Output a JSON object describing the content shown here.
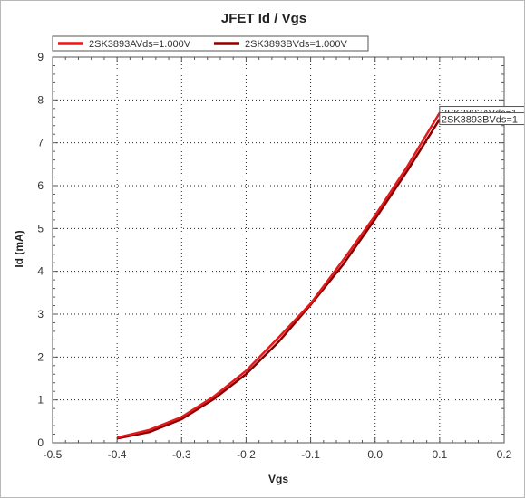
{
  "chart_data": {
    "type": "line",
    "title": "JFET Id / Vgs",
    "xlabel": "Vgs",
    "ylabel": "Id (mA)",
    "xlim": [
      -0.5,
      0.2
    ],
    "ylim": [
      0,
      9
    ],
    "x_ticks": [
      "-0.5",
      "-0.4",
      "-0.3",
      "-0.2",
      "-0.1",
      "0.0",
      "0.1",
      "0.2"
    ],
    "y_ticks": [
      "0",
      "1",
      "2",
      "3",
      "4",
      "5",
      "6",
      "7",
      "8",
      "9"
    ],
    "grid": true,
    "legend_position": "top-left",
    "series": [
      {
        "name": "2SK3893AVds=1.000V",
        "color": "#e31a1c",
        "x": [
          -0.4,
          -0.35,
          -0.3,
          -0.25,
          -0.2,
          -0.15,
          -0.1,
          -0.05,
          0.0,
          0.05,
          0.1
        ],
        "y": [
          0.12,
          0.3,
          0.6,
          1.08,
          1.68,
          2.45,
          3.25,
          4.25,
          5.3,
          6.45,
          7.7
        ]
      },
      {
        "name": "2SK3893BVds=1.000V",
        "color": "#8b0000",
        "x": [
          -0.4,
          -0.35,
          -0.3,
          -0.25,
          -0.2,
          -0.15,
          -0.1,
          -0.05,
          0.0,
          0.05,
          0.1
        ],
        "y": [
          0.1,
          0.25,
          0.55,
          1.02,
          1.6,
          2.35,
          3.22,
          4.15,
          5.22,
          6.35,
          7.55
        ]
      }
    ],
    "end_labels": [
      "2SK3893AVds=1",
      "2SK3893BVds=1"
    ]
  }
}
